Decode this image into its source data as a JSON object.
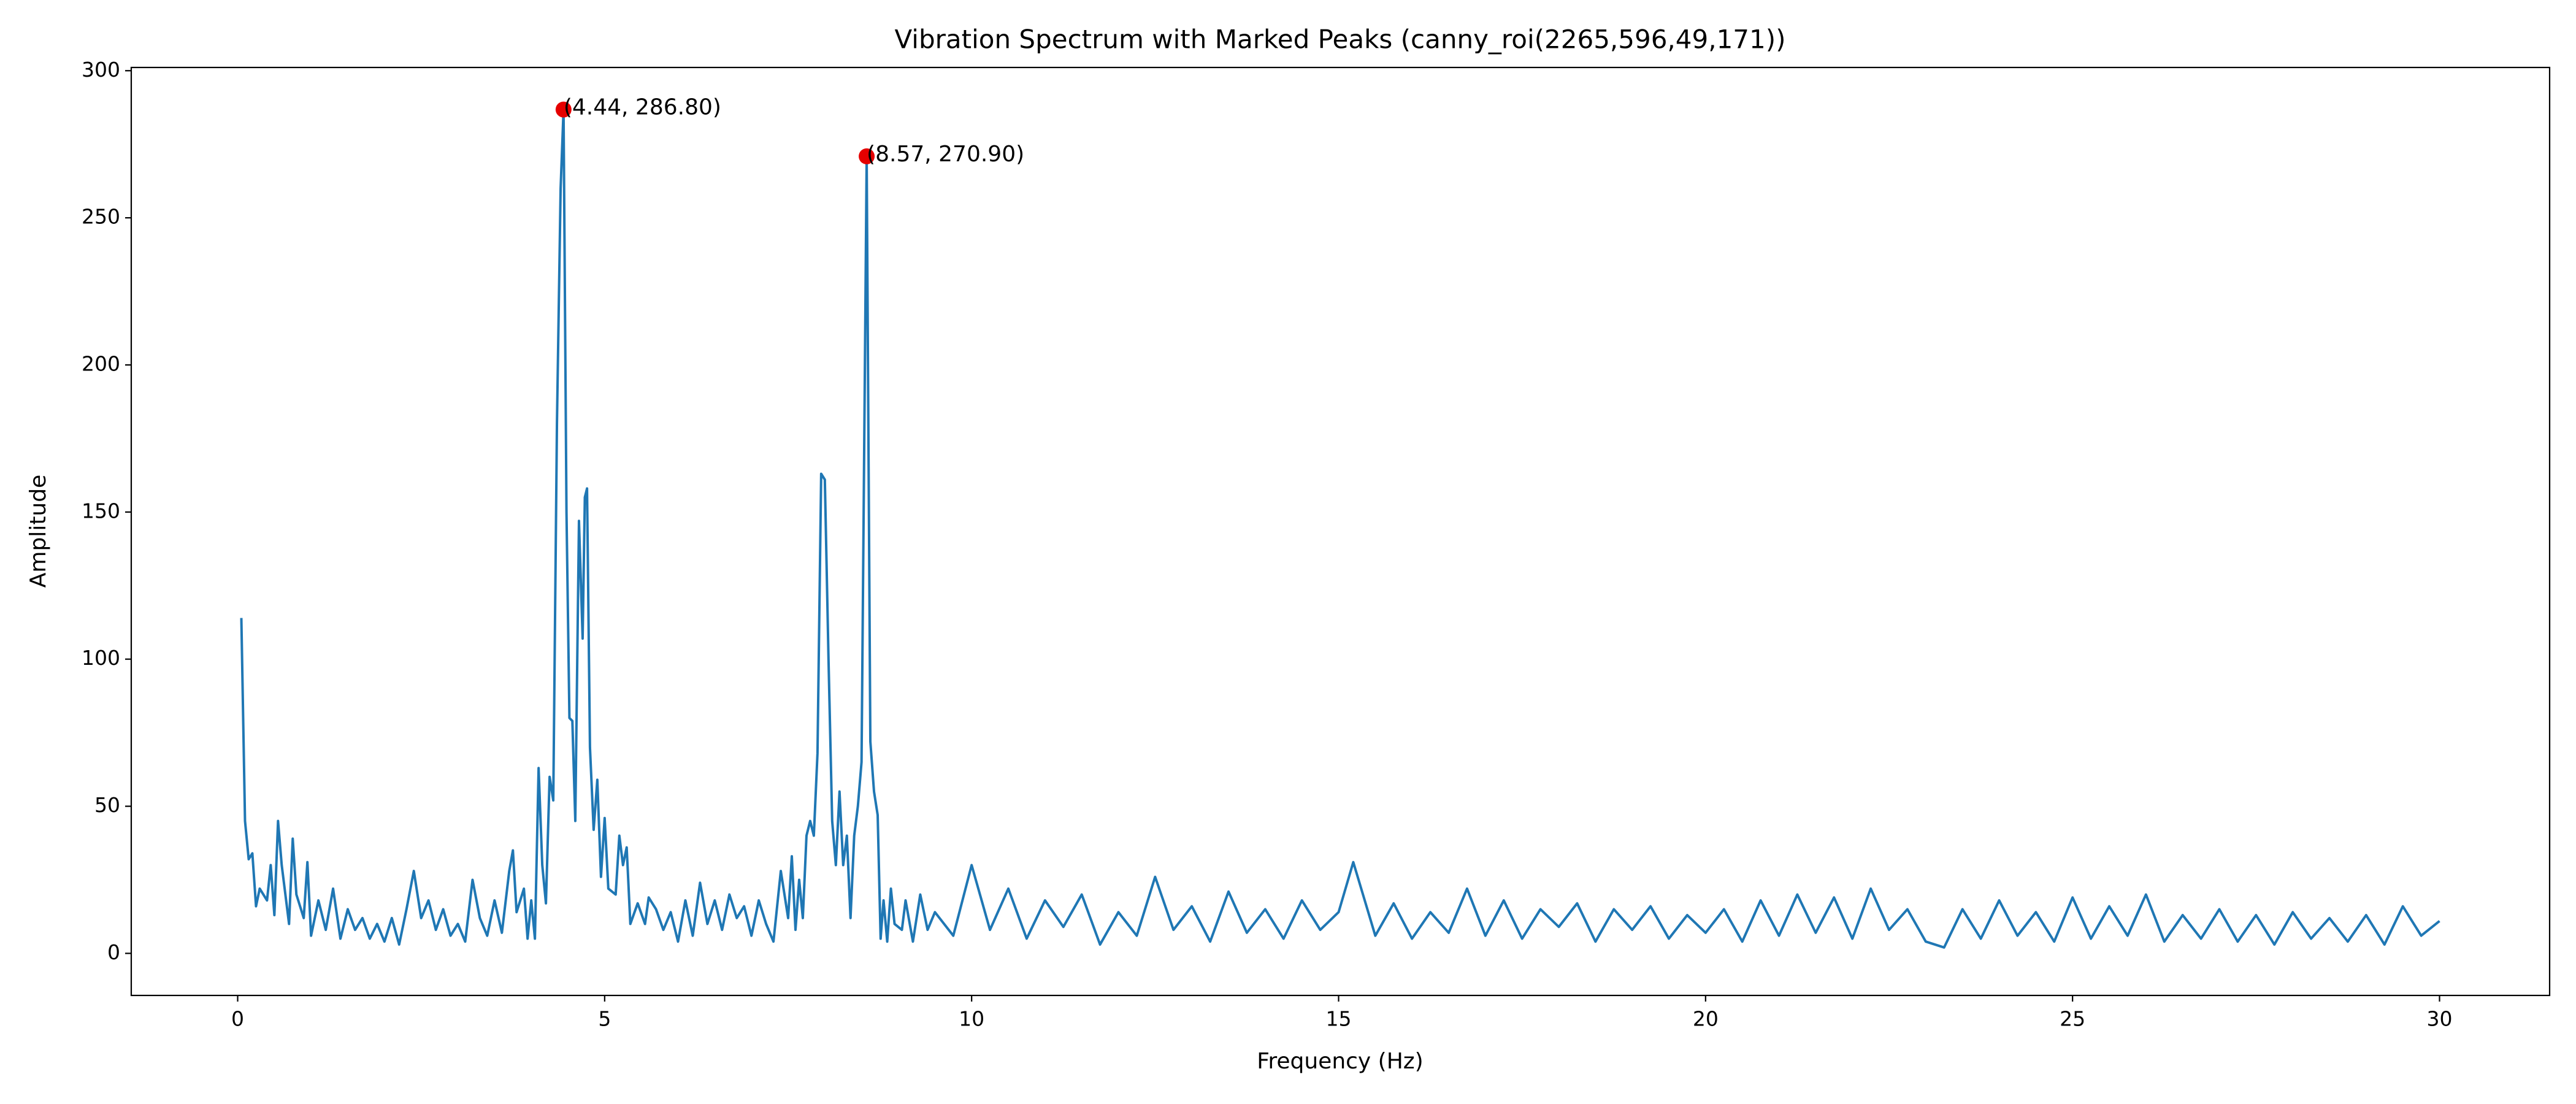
{
  "chart_data": {
    "type": "line",
    "title": "Vibration Spectrum with Marked Peaks (canny_roi(2265,596,49,171))",
    "x_label": "Frequency (Hz)",
    "y_label": "Amplitude",
    "xlim": [
      -1.45,
      31.5
    ],
    "ylim": [
      -14.3,
      301.1
    ],
    "xticks": [
      0,
      5,
      10,
      15,
      20,
      25,
      30
    ],
    "yticks": [
      0,
      50,
      100,
      150,
      200,
      250,
      300
    ],
    "grid": false,
    "series": [
      {
        "name": "Amplitude",
        "color": "#1f77b4",
        "x": [
          0.05,
          0.1,
          0.15,
          0.2,
          0.25,
          0.3,
          0.4,
          0.45,
          0.5,
          0.55,
          0.6,
          0.7,
          0.75,
          0.8,
          0.9,
          0.95,
          1.0,
          1.1,
          1.2,
          1.3,
          1.4,
          1.5,
          1.6,
          1.7,
          1.8,
          1.9,
          2.0,
          2.1,
          2.2,
          2.3,
          2.4,
          2.5,
          2.6,
          2.7,
          2.8,
          2.9,
          3.0,
          3.1,
          3.2,
          3.3,
          3.4,
          3.5,
          3.6,
          3.7,
          3.75,
          3.8,
          3.9,
          3.95,
          4.0,
          4.05,
          4.1,
          4.15,
          4.2,
          4.25,
          4.3,
          4.35,
          4.4,
          4.44,
          4.48,
          4.52,
          4.56,
          4.6,
          4.65,
          4.7,
          4.73,
          4.76,
          4.8,
          4.85,
          4.9,
          4.95,
          5.0,
          5.05,
          5.15,
          5.2,
          5.25,
          5.3,
          5.35,
          5.45,
          5.55,
          5.6,
          5.7,
          5.8,
          5.9,
          6.0,
          6.1,
          6.2,
          6.3,
          6.4,
          6.5,
          6.6,
          6.7,
          6.8,
          6.9,
          7.0,
          7.1,
          7.2,
          7.3,
          7.4,
          7.5,
          7.55,
          7.6,
          7.65,
          7.7,
          7.75,
          7.8,
          7.85,
          7.9,
          7.95,
          8.0,
          8.05,
          8.1,
          8.15,
          8.2,
          8.25,
          8.3,
          8.35,
          8.4,
          8.45,
          8.5,
          8.57,
          8.62,
          8.67,
          8.72,
          8.76,
          8.8,
          8.85,
          8.9,
          8.95,
          9.05,
          9.1,
          9.2,
          9.3,
          9.4,
          9.5,
          9.75,
          10.0,
          10.25,
          10.5,
          10.75,
          11.0,
          11.25,
          11.5,
          11.75,
          12.0,
          12.25,
          12.5,
          12.75,
          13.0,
          13.25,
          13.5,
          13.75,
          14.0,
          14.25,
          14.5,
          14.75,
          15.0,
          15.2,
          15.5,
          15.75,
          16.0,
          16.25,
          16.5,
          16.75,
          17.0,
          17.25,
          17.5,
          17.75,
          18.0,
          18.25,
          18.5,
          18.75,
          19.0,
          19.25,
          19.5,
          19.75,
          20.0,
          20.25,
          20.5,
          20.75,
          21.0,
          21.25,
          21.5,
          21.75,
          22.0,
          22.25,
          22.5,
          22.75,
          23.0,
          23.25,
          23.5,
          23.75,
          24.0,
          24.25,
          24.5,
          24.75,
          25.0,
          25.25,
          25.5,
          25.75,
          26.0,
          26.25,
          26.5,
          26.75,
          27.0,
          27.25,
          27.5,
          27.75,
          28.0,
          28.25,
          28.5,
          28.75,
          29.0,
          29.25,
          29.5,
          29.75,
          30.0
        ],
        "values": [
          114,
          45,
          32,
          34,
          16,
          22,
          18,
          30,
          13,
          45,
          30,
          10,
          39,
          20,
          12,
          31,
          6,
          18,
          8,
          22,
          5,
          15,
          8,
          12,
          5,
          10,
          4,
          12,
          3,
          15,
          28,
          12,
          18,
          8,
          15,
          6,
          10,
          4,
          25,
          12,
          6,
          18,
          7,
          28,
          35,
          14,
          22,
          5,
          18,
          5,
          63,
          30,
          17,
          60,
          52,
          180,
          260,
          286.8,
          150,
          80,
          79,
          45,
          147,
          107,
          155,
          158,
          70,
          42,
          59,
          26,
          46,
          22,
          20,
          40,
          30,
          36,
          10,
          17,
          10,
          19,
          15,
          8,
          14,
          4,
          18,
          6,
          24,
          10,
          18,
          8,
          20,
          12,
          16,
          6,
          18,
          10,
          4,
          28,
          12,
          33,
          8,
          25,
          12,
          40,
          45,
          40,
          68,
          163,
          161,
          100,
          45,
          30,
          55,
          30,
          40,
          12,
          40,
          50,
          65,
          270.9,
          72,
          55,
          47,
          5,
          18,
          4,
          22,
          10,
          8,
          18,
          4,
          20,
          8,
          14,
          6,
          30,
          8,
          22,
          5,
          18,
          9,
          20,
          3,
          14,
          6,
          26,
          8,
          16,
          4,
          21,
          7,
          15,
          5,
          18,
          8,
          14,
          31,
          6,
          17,
          5,
          14,
          7,
          22,
          6,
          18,
          5,
          15,
          9,
          17,
          4,
          15,
          8,
          16,
          5,
          13,
          7,
          15,
          4,
          18,
          6,
          20,
          7,
          19,
          5,
          22,
          8,
          15,
          4,
          2,
          15,
          5,
          18,
          6,
          14,
          4,
          19,
          5,
          16,
          6,
          20,
          4,
          13,
          5,
          15,
          4,
          13,
          3,
          14,
          5,
          12,
          4,
          13,
          3,
          16,
          6,
          11
        ]
      }
    ],
    "peaks": [
      {
        "x": 4.44,
        "y": 286.8,
        "label": "(4.44, 286.80)"
      },
      {
        "x": 8.57,
        "y": 270.9,
        "label": "(8.57, 270.90)"
      }
    ],
    "peak_color": "#e50000"
  }
}
